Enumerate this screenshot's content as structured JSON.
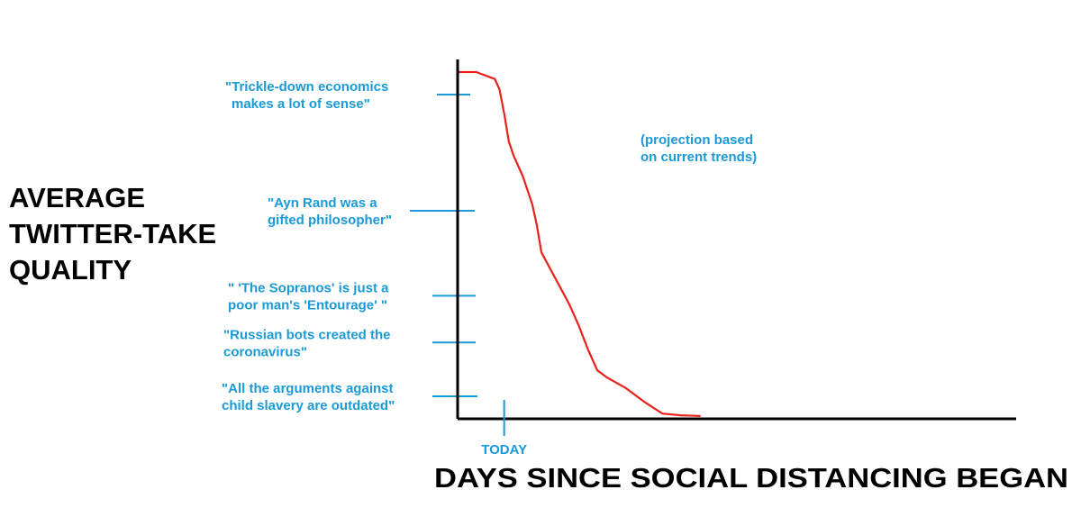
{
  "colors": {
    "accent": "#1a9ad6",
    "curve": "#e8211b",
    "axis": "#000000"
  },
  "chart_data": {
    "type": "line",
    "title": "",
    "ylabel_lines": [
      "AVERAGE",
      "TWITTER-TAKE",
      "QUALITY"
    ],
    "xlabel": "DAYS SINCE SOCIAL DISTANCING BEGAN",
    "x_tick": {
      "label": "TODAY",
      "x": 1
    },
    "annotation": [
      "(projection based",
      "on current trends)"
    ],
    "y_ticks": [
      {
        "lines": [
          "\"Trickle-down economics",
          "makes a lot of sense\""
        ],
        "y": 93.5
      },
      {
        "lines": [
          "\"Ayn Rand was a",
          "gifted philosopher\""
        ],
        "y": 60
      },
      {
        "lines": [
          "\" 'The Sopranos' is just a",
          "poor man's 'Entourage' \""
        ],
        "y": 35.5
      },
      {
        "lines": [
          "\"Russian bots created the",
          "coronavirus\""
        ],
        "y": 22
      },
      {
        "lines": [
          "\"All the arguments against",
          "child slavery are outdated\""
        ],
        "y": 6.5
      }
    ],
    "xlim": [
      0,
      12
    ],
    "ylim": [
      0,
      100
    ],
    "series": [
      {
        "x": [
          0,
          0.4,
          0.8,
          0.9,
          1.0,
          1.1,
          1.2,
          1.4,
          1.6,
          1.7,
          1.8,
          2.0,
          2.2,
          2.4,
          2.6,
          2.8,
          3.0,
          3.2,
          3.6,
          4.0,
          4.4,
          4.8,
          5.2
        ],
        "y": [
          100,
          100,
          98,
          95,
          88,
          80,
          76,
          70,
          62,
          56,
          48,
          43,
          38,
          33,
          27,
          20,
          14,
          12,
          9,
          5,
          1.5,
          1,
          0.8
        ]
      }
    ]
  }
}
